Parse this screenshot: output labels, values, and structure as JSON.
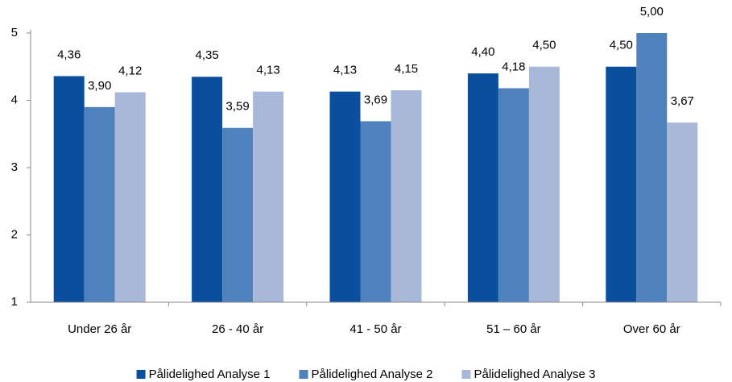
{
  "chart_data": {
    "type": "bar",
    "categories": [
      "Under 26 år",
      "26 - 40 år",
      "41 - 50 år",
      "51 – 60 år",
      "Over 60 år"
    ],
    "series": [
      {
        "name": "Pålidelighed Analyse 1",
        "color": "#0a4f9e",
        "values": [
          4.36,
          4.35,
          4.13,
          4.4,
          4.5
        ],
        "value_labels": [
          "4,36",
          "4,35",
          "4,13",
          "4,40",
          "4,50"
        ]
      },
      {
        "name": "Pålidelighed Analyse 2",
        "color": "#4f81bd",
        "values": [
          3.9,
          3.59,
          3.69,
          4.18,
          5.0
        ],
        "value_labels": [
          "3,90",
          "3,59",
          "3,69",
          "4,18",
          "5,00"
        ]
      },
      {
        "name": "Pålidelighed Analyse 3",
        "color": "#a8b8d9",
        "values": [
          4.12,
          4.13,
          4.15,
          4.5,
          3.67
        ],
        "value_labels": [
          "4,12",
          "4,13",
          "4,15",
          "4,50",
          "3,67"
        ]
      }
    ],
    "ylim": [
      1,
      5
    ],
    "yticks": [
      1,
      2,
      3,
      4,
      5
    ],
    "legend": "bottom"
  }
}
